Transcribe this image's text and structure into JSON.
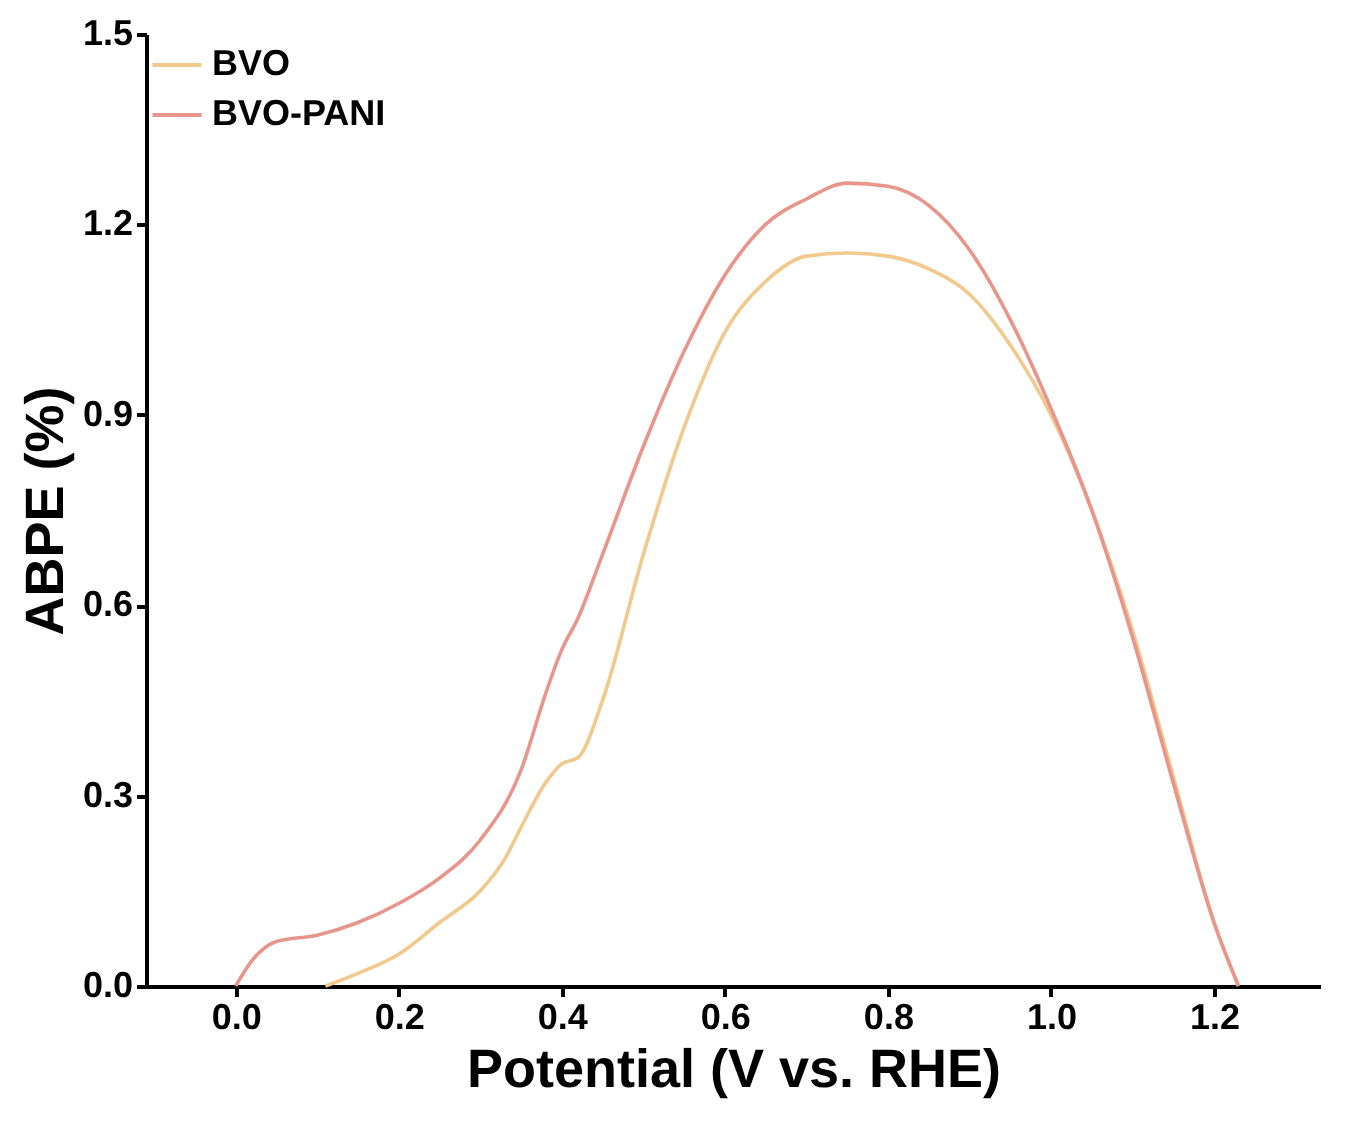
{
  "chart_data": {
    "type": "line",
    "xlabel": "Potential (V vs. RHE)",
    "ylabel": "ABPE (%)",
    "xlim": [
      -0.11,
      1.33
    ],
    "xticks": [
      {
        "value": 0,
        "label": "0.0"
      },
      0.2,
      0.4,
      0.6,
      0.8,
      {
        "value": 1,
        "label": "1.0"
      },
      1.2
    ],
    "ylim": [
      0,
      1.5
    ],
    "yticks": [
      {
        "value": 0,
        "label": "0.0"
      },
      0.3,
      0.6,
      0.9,
      1.2,
      1.5
    ],
    "grid": false,
    "legend": "top left",
    "line_style": "solid",
    "marker": "none",
    "series": [
      {
        "name": "BVO",
        "color": "#f2c98c",
        "x": [
          0.11,
          0.15,
          0.2,
          0.25,
          0.3,
          0.33,
          0.35,
          0.38,
          0.4,
          0.42,
          0.45,
          0.5,
          0.55,
          0.6,
          0.65,
          0.7,
          0.75,
          0.8,
          0.85,
          0.9,
          0.95,
          1.0,
          1.05,
          1.1,
          1.15,
          1.2,
          1.23
        ],
        "values": [
          0.0,
          0.02,
          0.05,
          0.1,
          0.15,
          0.2,
          0.25,
          0.32,
          0.35,
          0.36,
          0.45,
          0.68,
          0.88,
          1.03,
          1.11,
          1.15,
          1.155,
          1.15,
          1.13,
          1.09,
          1.01,
          0.9,
          0.75,
          0.56,
          0.33,
          0.1,
          0.0
        ]
      },
      {
        "name": "BVO-PANI",
        "color": "#e8968c",
        "x": [
          0.0,
          0.02,
          0.05,
          0.1,
          0.15,
          0.2,
          0.25,
          0.3,
          0.35,
          0.38,
          0.4,
          0.42,
          0.45,
          0.5,
          0.55,
          0.6,
          0.65,
          0.7,
          0.75,
          0.8,
          0.85,
          0.9,
          0.95,
          1.0,
          1.05,
          1.1,
          1.15,
          1.2,
          1.23
        ],
        "values": [
          0.0,
          0.04,
          0.07,
          0.08,
          0.1,
          0.13,
          0.17,
          0.23,
          0.34,
          0.46,
          0.53,
          0.58,
          0.68,
          0.85,
          1.0,
          1.12,
          1.2,
          1.24,
          1.265,
          1.26,
          1.23,
          1.16,
          1.05,
          0.91,
          0.75,
          0.55,
          0.32,
          0.1,
          0.0
        ]
      }
    ]
  }
}
